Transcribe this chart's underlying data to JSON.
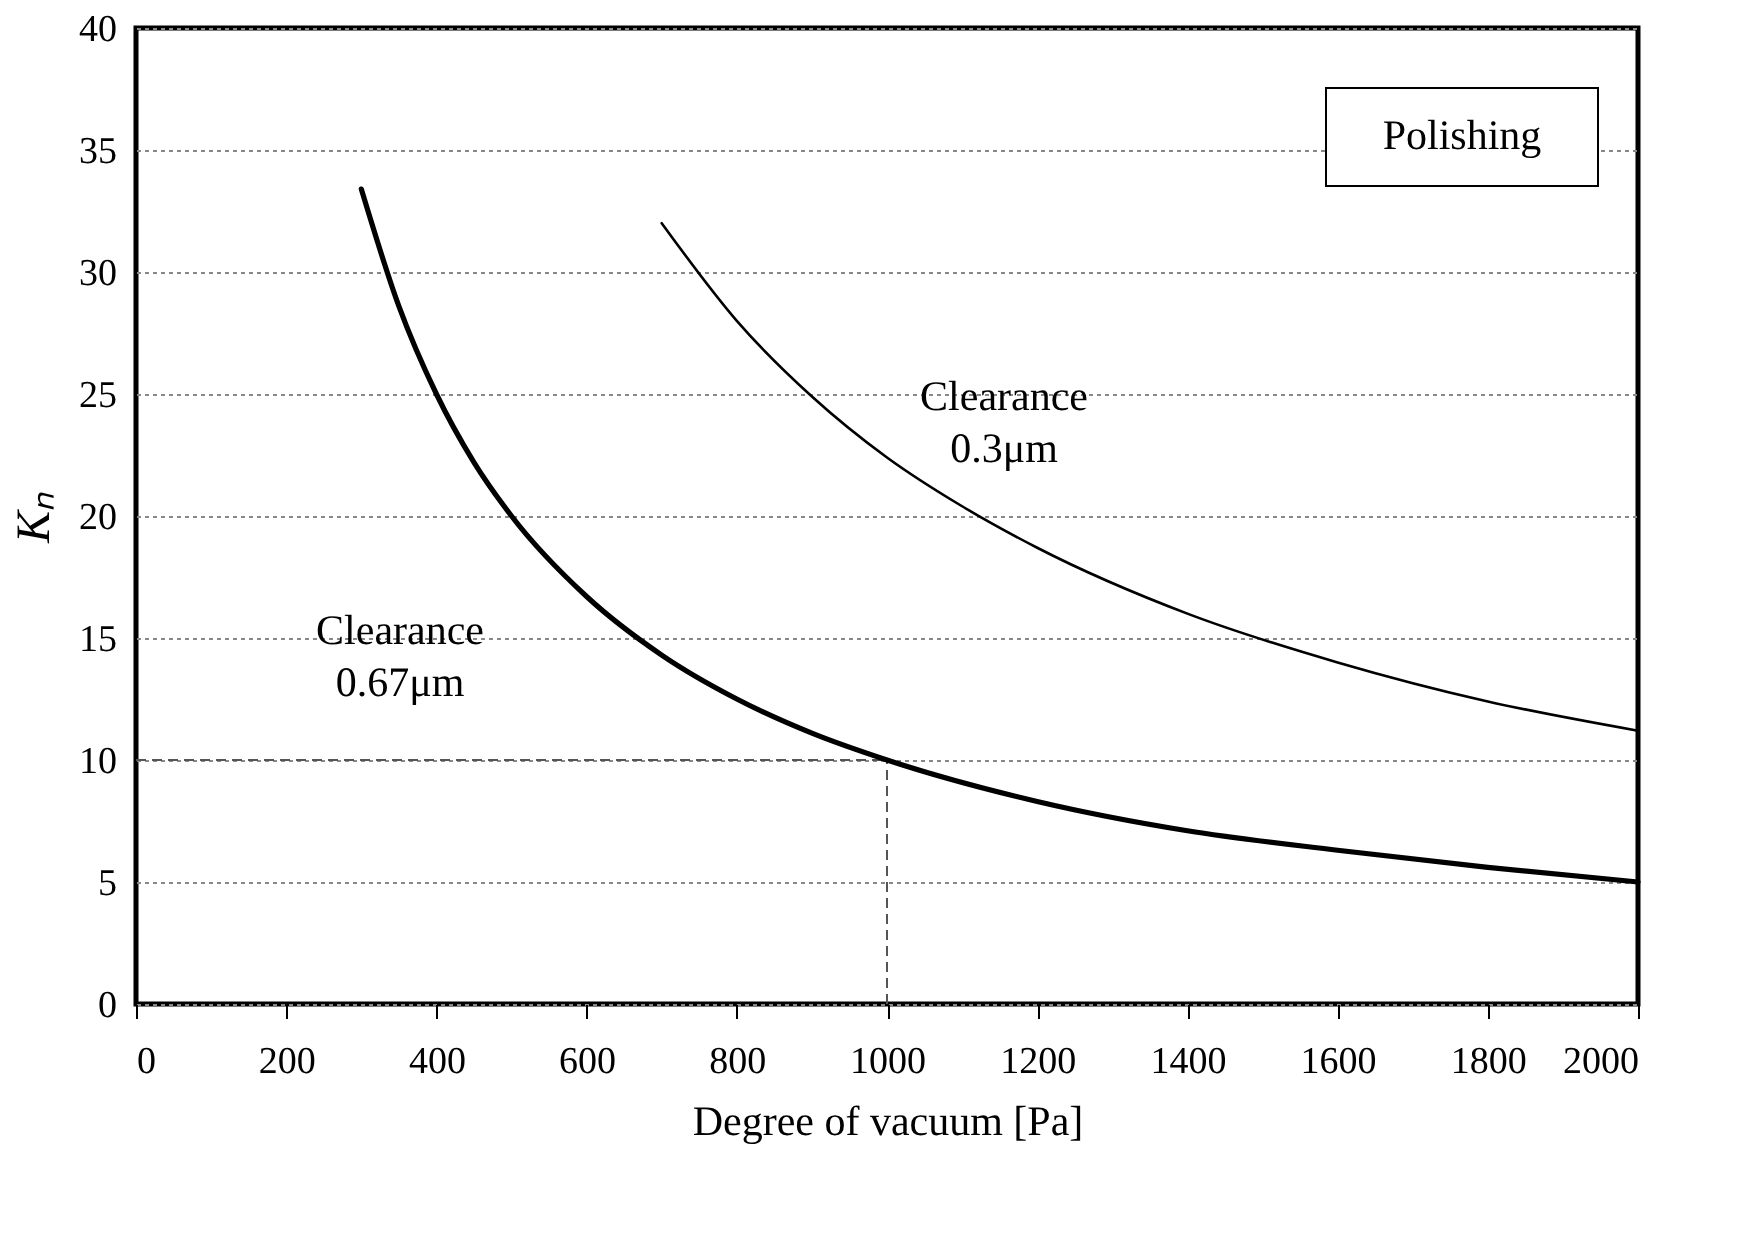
{
  "chart_data": {
    "type": "line",
    "xlabel": "Degree of vacuum [Pa]",
    "ylabel": "Kₙ",
    "xlim": [
      0,
      2000
    ],
    "xticks": [
      0,
      200,
      400,
      600,
      800,
      1000,
      1200,
      1400,
      1600,
      1800,
      2000
    ],
    "ylim": [
      0,
      40
    ],
    "yticks": [
      0,
      5,
      10,
      15,
      20,
      25,
      30,
      35,
      40
    ],
    "grid": "y",
    "marker": "none",
    "line_style": "solid",
    "series": [
      {
        "color": "#000000",
        "x": [
          300,
          350,
          400,
          450,
          500,
          600,
          700,
          800,
          900,
          1000,
          1200,
          1400,
          1600,
          1800,
          2000
        ],
        "values": [
          33.4,
          28.6,
          25,
          22.2,
          20,
          16.7,
          14.3,
          12.5,
          11.1,
          10,
          8.3,
          7.1,
          6.3,
          5.6,
          5
        ]
      },
      {
        "color": "#000000",
        "x": [
          700,
          800,
          900,
          1000,
          1100,
          1200,
          1400,
          1600,
          1800,
          2000
        ],
        "values": [
          32,
          28,
          24.9,
          22.4,
          20.4,
          18.7,
          16,
          14,
          12.4,
          11.2
        ]
      }
    ],
    "ref_lines": [
      {
        "axis": "y",
        "value": 10,
        "line_style": "dashed",
        "color": "#555555"
      },
      {
        "axis": "x",
        "value": 1000,
        "line_style": "dashed",
        "color": "#555555"
      }
    ],
    "annotations": [
      "Polishing",
      "Clearance\n0.3μm",
      "Clearance\n0.67μm"
    ]
  }
}
